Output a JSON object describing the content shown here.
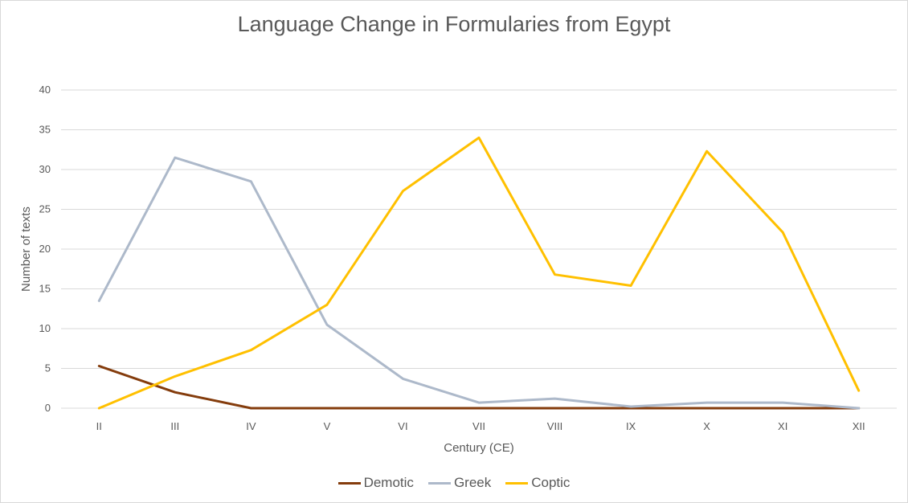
{
  "chart_data": {
    "type": "line",
    "title": "Language Change in Formularies from Egypt",
    "xlabel": "Century (CE)",
    "ylabel": "Number of texts",
    "categories": [
      "II",
      "III",
      "IV",
      "V",
      "VI",
      "VII",
      "VIII",
      "IX",
      "X",
      "XI",
      "XII"
    ],
    "ylim": [
      0,
      40
    ],
    "yticks": [
      0,
      5,
      10,
      15,
      20,
      25,
      30,
      35,
      40
    ],
    "grid": "horizontal",
    "legend_position": "bottom",
    "series": [
      {
        "name": "Demotic",
        "color": "#843c0c",
        "values": [
          5.3,
          2,
          0,
          0,
          0,
          0,
          0,
          0,
          0,
          0,
          0
        ]
      },
      {
        "name": "Greek",
        "color": "#adb9ca",
        "values": [
          13.5,
          31.5,
          28.5,
          10.5,
          3.7,
          0.7,
          1.2,
          0.2,
          0.7,
          0.7,
          0
        ]
      },
      {
        "name": "Coptic",
        "color": "#ffc000",
        "values": [
          0,
          4,
          7.3,
          13,
          27.3,
          34,
          16.8,
          15.4,
          32.3,
          22.1,
          2.2
        ]
      }
    ]
  }
}
